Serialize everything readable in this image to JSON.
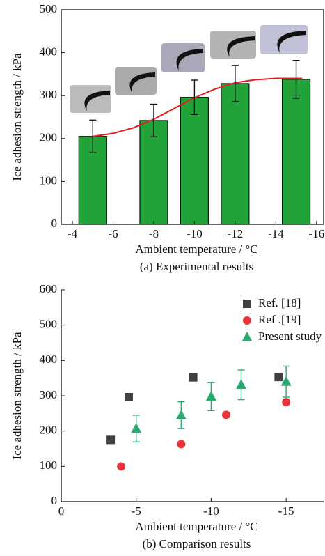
{
  "chart_data": [
    {
      "type": "bar",
      "x": [
        -5,
        -8,
        -10,
        -12,
        -15
      ],
      "values": [
        205,
        242,
        296,
        328,
        338
      ],
      "errors": [
        38,
        38,
        40,
        42,
        44
      ],
      "color": "#22a33a",
      "xlim": [
        -3.45,
        -16.35
      ],
      "xticks": [
        -4,
        -6,
        -8,
        -10,
        -12,
        -14,
        -16
      ],
      "ylim": [
        0,
        500
      ],
      "yticks": [
        0,
        100,
        200,
        300,
        400,
        500
      ],
      "x_label": "Ambient temperature / °C",
      "y_label": "Ice adhesion strength / kPa",
      "caption": "(a) Experimental results",
      "fit": {
        "color": "#e02020",
        "x": [
          -5,
          -6,
          -7,
          -8,
          -9,
          -10,
          -11,
          -12,
          -13,
          -14,
          -15,
          -15.3
        ],
        "values": [
          205,
          212,
          225,
          245,
          270,
          295,
          315,
          330,
          337,
          340,
          340,
          340
        ]
      }
    },
    {
      "type": "scatter",
      "xlim": [
        0,
        -17.5
      ],
      "xticks": [
        0,
        -5,
        -10,
        -15
      ],
      "ylim": [
        0,
        600
      ],
      "yticks": [
        0,
        100,
        200,
        300,
        400,
        500,
        600
      ],
      "x_label": "Ambient temperature / °C",
      "y_label": "Ice adhesion strength / kPa",
      "caption": "(b) Comparison results",
      "legend": "upper right",
      "series": [
        {
          "name": "Ref. [18]",
          "color": "#404040",
          "marker": "square",
          "x": [
            -3.3,
            -4.5,
            -8.8,
            -14.5
          ],
          "values": [
            175,
            296,
            352,
            353
          ]
        },
        {
          "name": "Ref .[19]",
          "color": "#e8343a",
          "marker": "circle",
          "x": [
            -4,
            -8,
            -11,
            -15
          ],
          "values": [
            100,
            163,
            246,
            282
          ]
        },
        {
          "name": "Present study",
          "color": "#2aaa6e",
          "marker": "triangle",
          "x": [
            -5,
            -8,
            -10,
            -12,
            -15
          ],
          "values": [
            207,
            245,
            298,
            331,
            340
          ],
          "errors": [
            38,
            38,
            40,
            42,
            44
          ]
        }
      ]
    }
  ]
}
